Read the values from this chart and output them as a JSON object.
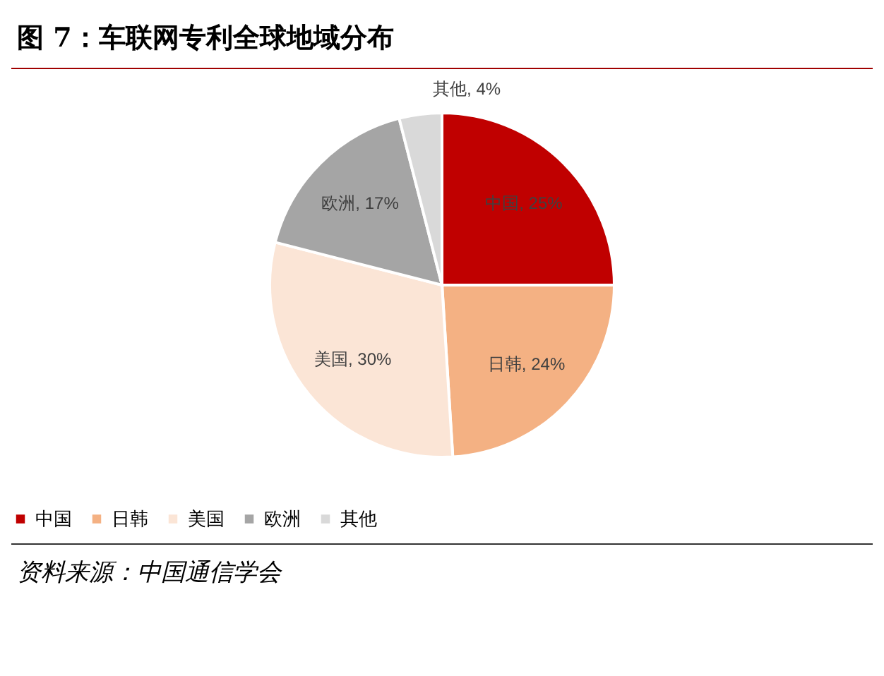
{
  "chart_data": {
    "type": "pie",
    "title": "图 7：车联网专利全球地域分布",
    "categories": [
      "中国",
      "日韩",
      "美国",
      "欧洲",
      "其他"
    ],
    "values": [
      25,
      24,
      30,
      17,
      4
    ],
    "colors": [
      "#c00000",
      "#f4b183",
      "#fbe5d6",
      "#a5a5a5",
      "#d9d9d9"
    ],
    "value_labels": [
      "中国, 25%",
      "日韩, 24%",
      "美国, 30%",
      "欧洲, 17%",
      "其他, 4%"
    ],
    "legend": "bottom",
    "annotations": [
      "资料来源：中国通信学会"
    ]
  }
}
